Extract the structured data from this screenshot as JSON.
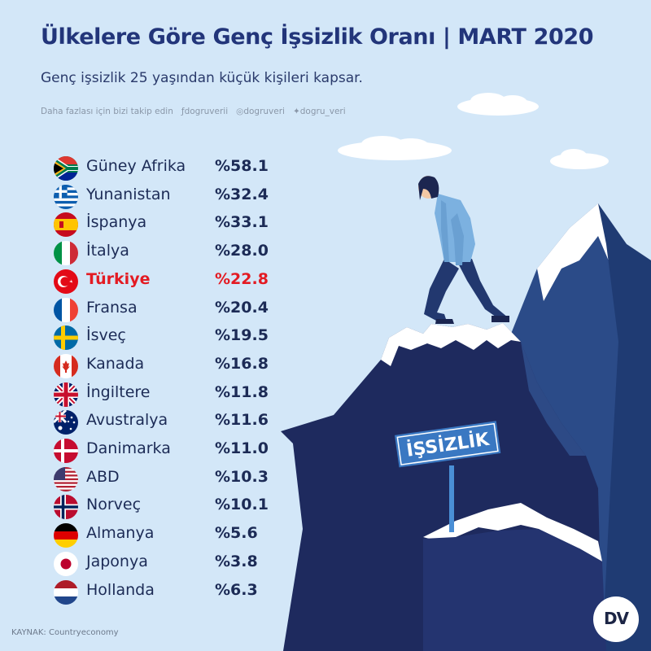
{
  "header": {
    "title": "Ülkelere Göre  Genç İşsizlik Oranı | MART 2020",
    "subtitle": "Genç işsizlik 25 yaşından küçük kişileri kapsar."
  },
  "follow": {
    "prompt": "Daha fazlası için bizi takip edin",
    "facebook": "dogruverii",
    "instagram": "dogruveri",
    "twitter": "dogru_veri"
  },
  "countries": [
    {
      "name": "Güney Afrika",
      "value": "%58.1",
      "flag": "south-africa"
    },
    {
      "name": "Yunanistan",
      "value": "%32.4",
      "flag": "greece"
    },
    {
      "name": "İspanya",
      "value": "%33.1",
      "flag": "spain"
    },
    {
      "name": "İtalya",
      "value": "%28.0",
      "flag": "italy"
    },
    {
      "name": "Türkiye",
      "value": "%22.8",
      "flag": "turkey",
      "highlight": true
    },
    {
      "name": "Fransa",
      "value": "%20.4",
      "flag": "france"
    },
    {
      "name": "İsveç",
      "value": "%19.5",
      "flag": "sweden"
    },
    {
      "name": "Kanada",
      "value": "%16.8",
      "flag": "canada"
    },
    {
      "name": "İngiltere",
      "value": "%11.8",
      "flag": "uk"
    },
    {
      "name": "Avustralya",
      "value": "%11.6",
      "flag": "australia"
    },
    {
      "name": "Danimarka",
      "value": "%11.0",
      "flag": "denmark"
    },
    {
      "name": "ABD",
      "value": "%10.3",
      "flag": "usa"
    },
    {
      "name": "Norveç",
      "value": "%10.1",
      "flag": "norway"
    },
    {
      "name": "Almanya",
      "value": "%5.6",
      "flag": "germany"
    },
    {
      "name": "Japonya",
      "value": "%3.8",
      "flag": "japan"
    },
    {
      "name": "Hollanda",
      "value": "%6.3",
      "flag": "netherlands"
    }
  ],
  "sign": {
    "text": "İŞSİZLİK"
  },
  "source": "KAYNAK: Countryeconomy",
  "logo": {
    "text": "DV"
  },
  "colors": {
    "background": "#d3e7f8",
    "title": "#22357a",
    "text": "#1c2b56",
    "highlight": "#e31b23",
    "mountain_dark": "#1e2a5e",
    "mountain_mid": "#2c4f8c",
    "sign": "#3a78c2"
  }
}
